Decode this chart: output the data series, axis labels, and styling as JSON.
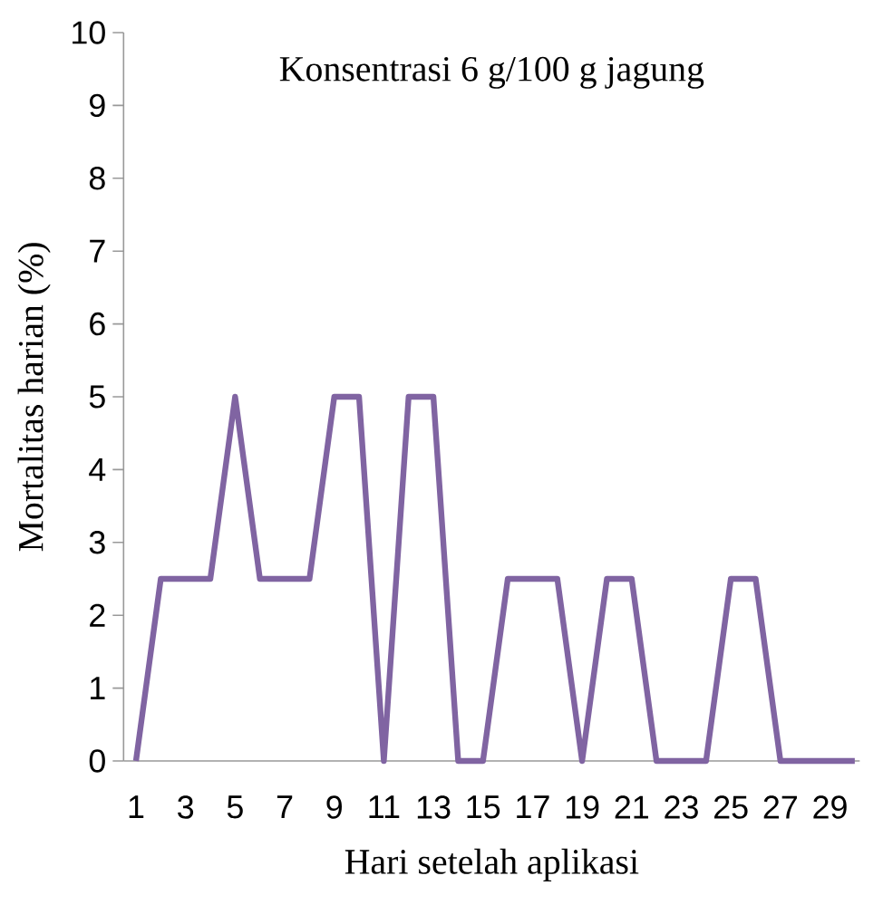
{
  "chart_data": {
    "type": "line",
    "title": "Konsentrasi 6 g/100 g jagung",
    "xlabel": "Hari setelah aplikasi",
    "ylabel": "Mortalitas harian (%)",
    "categories": [
      "1",
      null,
      "3",
      null,
      "5",
      null,
      "7",
      null,
      "9",
      null,
      "11",
      null,
      "13",
      null,
      "15",
      null,
      "17",
      null,
      "19",
      null,
      "21",
      null,
      "23",
      null,
      "25",
      null,
      "27",
      null,
      "29",
      null
    ],
    "series": [
      {
        "color": "#8064a2",
        "values": [
          0,
          2.5,
          2.5,
          2.5,
          5,
          2.5,
          2.5,
          2.5,
          5,
          5,
          0,
          5,
          5,
          0,
          0,
          2.5,
          2.5,
          2.5,
          0,
          2.5,
          2.5,
          0,
          0,
          0,
          2.5,
          2.5,
          0,
          0,
          0,
          0
        ]
      }
    ],
    "ylim": [
      0,
      10
    ],
    "yticks": [
      0,
      1,
      2,
      3,
      4,
      5,
      6,
      7,
      8,
      9,
      10
    ],
    "grid": false,
    "marker": "none",
    "line_style": "solid"
  }
}
